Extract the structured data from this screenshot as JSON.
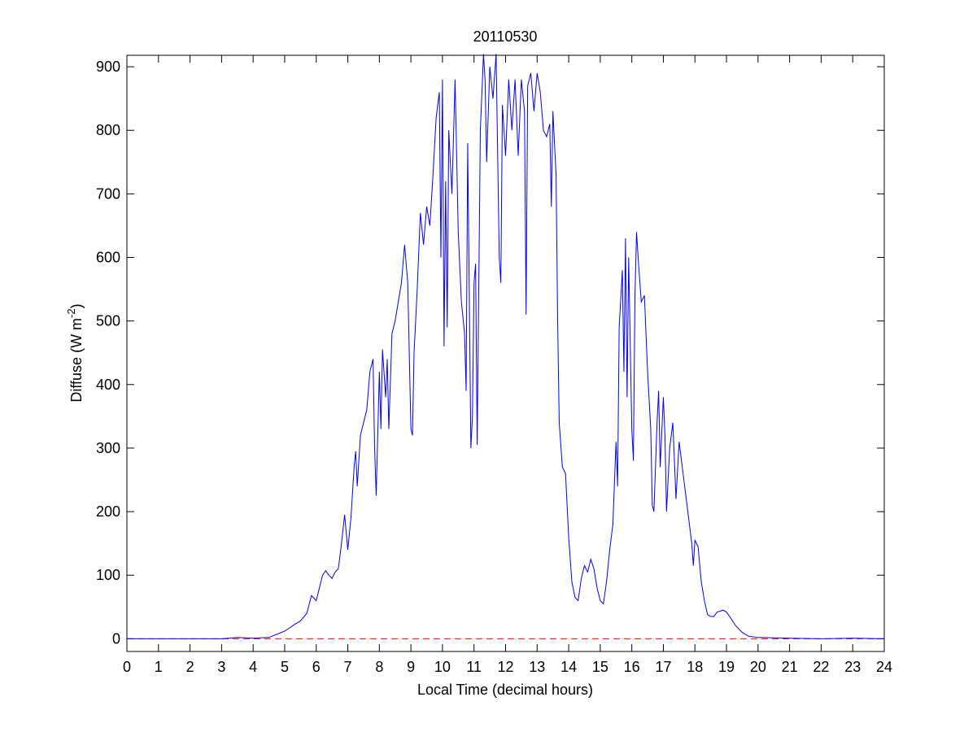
{
  "chart_data": {
    "type": "line",
    "title": "20110530",
    "xlabel": "Local Time (decimal hours)",
    "ylabel_parts": [
      "Diffuse (W m",
      "-2",
      ")"
    ],
    "xlim": [
      0,
      24
    ],
    "ylim": [
      -20,
      918
    ],
    "xticks": [
      0,
      1,
      2,
      3,
      4,
      5,
      6,
      7,
      8,
      9,
      10,
      11,
      12,
      13,
      14,
      15,
      16,
      17,
      18,
      19,
      20,
      21,
      22,
      23,
      24
    ],
    "yticks": [
      0,
      100,
      200,
      300,
      400,
      500,
      600,
      700,
      800,
      900
    ],
    "grid": false,
    "reference_line": {
      "value": 0,
      "color": "#ff0000",
      "style": "dashed"
    },
    "series": [
      {
        "color": "#0000ff",
        "x": [
          0,
          1,
          2,
          3,
          3.5,
          4,
          4.5,
          4.8,
          5,
          5.3,
          5.5,
          5.7,
          5.85,
          6,
          6.1,
          6.2,
          6.3,
          6.4,
          6.5,
          6.6,
          6.7,
          6.8,
          6.9,
          7.0,
          7.1,
          7.2,
          7.25,
          7.3,
          7.4,
          7.5,
          7.6,
          7.7,
          7.8,
          7.85,
          7.9,
          8.0,
          8.05,
          8.1,
          8.2,
          8.25,
          8.3,
          8.4,
          8.5,
          8.6,
          8.7,
          8.8,
          8.9,
          9.0,
          9.05,
          9.1,
          9.2,
          9.3,
          9.4,
          9.5,
          9.6,
          9.7,
          9.8,
          9.9,
          9.95,
          10.0,
          10.05,
          10.1,
          10.15,
          10.2,
          10.3,
          10.4,
          10.5,
          10.6,
          10.7,
          10.75,
          10.8,
          10.9,
          10.95,
          11.0,
          11.05,
          11.1,
          11.2,
          11.3,
          11.35,
          11.4,
          11.5,
          11.6,
          11.7,
          11.8,
          11.85,
          11.9,
          12.0,
          12.1,
          12.2,
          12.3,
          12.4,
          12.5,
          12.6,
          12.65,
          12.7,
          12.8,
          12.9,
          13.0,
          13.1,
          13.2,
          13.3,
          13.4,
          13.45,
          13.5,
          13.6,
          13.65,
          13.7,
          13.8,
          13.9,
          14.0,
          14.1,
          14.2,
          14.3,
          14.4,
          14.5,
          14.6,
          14.7,
          14.8,
          14.9,
          15.0,
          15.1,
          15.2,
          15.3,
          15.4,
          15.5,
          15.55,
          15.6,
          15.7,
          15.75,
          15.8,
          15.85,
          15.9,
          16.0,
          16.05,
          16.1,
          16.15,
          16.2,
          16.3,
          16.4,
          16.5,
          16.6,
          16.65,
          16.7,
          16.8,
          16.85,
          16.9,
          17.0,
          17.05,
          17.1,
          17.2,
          17.3,
          17.4,
          17.5,
          17.6,
          17.7,
          17.8,
          17.9,
          17.95,
          18.0,
          18.1,
          18.2,
          18.3,
          18.4,
          18.5,
          18.6,
          18.7,
          18.9,
          19.0,
          19.1,
          19.3,
          19.5,
          19.7,
          20,
          21,
          22,
          23,
          24
        ],
        "values": [
          0,
          0,
          0,
          0,
          2,
          1,
          2,
          8,
          12,
          22,
          28,
          40,
          68,
          60,
          80,
          100,
          107,
          100,
          95,
          105,
          110,
          150,
          195,
          140,
          190,
          270,
          295,
          240,
          320,
          340,
          360,
          420,
          440,
          300,
          225,
          420,
          330,
          455,
          380,
          440,
          330,
          480,
          500,
          530,
          560,
          620,
          560,
          330,
          320,
          450,
          550,
          670,
          620,
          680,
          650,
          730,
          820,
          860,
          600,
          880,
          460,
          720,
          490,
          800,
          700,
          880,
          640,
          530,
          480,
          390,
          780,
          300,
          350,
          560,
          590,
          305,
          800,
          920,
          880,
          750,
          900,
          850,
          920,
          600,
          560,
          840,
          760,
          880,
          800,
          880,
          760,
          880,
          830,
          510,
          870,
          890,
          830,
          890,
          860,
          800,
          790,
          810,
          680,
          830,
          730,
          500,
          340,
          270,
          260,
          160,
          90,
          65,
          60,
          95,
          115,
          105,
          125,
          110,
          80,
          60,
          55,
          90,
          140,
          180,
          310,
          240,
          490,
          580,
          420,
          630,
          380,
          600,
          330,
          280,
          540,
          640,
          600,
          530,
          540,
          420,
          330,
          210,
          200,
          340,
          390,
          270,
          380,
          320,
          200,
          300,
          340,
          220,
          310,
          270,
          230,
          190,
          150,
          115,
          155,
          145,
          90,
          60,
          38,
          35,
          35,
          42,
          45,
          42,
          35,
          20,
          10,
          4,
          2,
          1,
          0,
          1,
          0
        ]
      }
    ]
  }
}
